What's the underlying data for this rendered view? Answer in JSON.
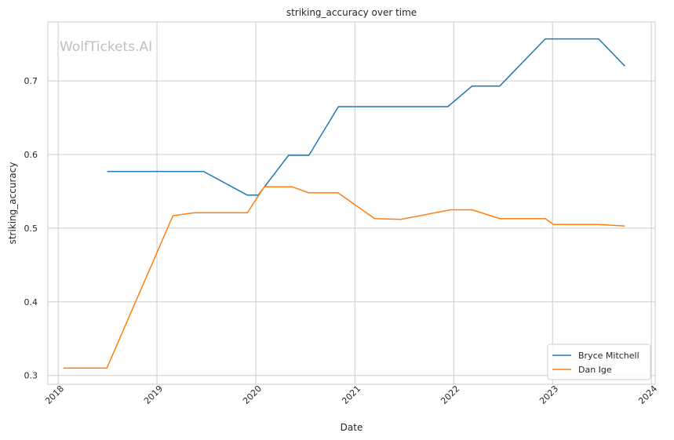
{
  "chart_data": {
    "type": "line",
    "title": "striking_accuracy over time",
    "xlabel": "Date",
    "ylabel": "striking_accuracy",
    "watermark": "WolfTickets.AI",
    "x_ticks": [
      "2018",
      "2019",
      "2020",
      "2021",
      "2022",
      "2023",
      "2024"
    ],
    "y_ticks": [
      "0.3",
      "0.4",
      "0.5",
      "0.6",
      "0.7"
    ],
    "xlim": [
      "2017-11-24",
      "2024-01-15"
    ],
    "ylim": [
      0.288,
      0.78
    ],
    "grid": true,
    "legend_position": "lower-right",
    "series": [
      {
        "name": "Bryce Mitchell",
        "color": "#1f77b4",
        "points": [
          [
            "2018-07-01",
            0.577
          ],
          [
            "2019-06-22",
            0.577
          ],
          [
            "2019-11-30",
            0.545
          ],
          [
            "2020-01-10",
            0.545
          ],
          [
            "2020-05-01",
            0.599
          ],
          [
            "2020-07-15",
            0.599
          ],
          [
            "2020-11-01",
            0.665
          ],
          [
            "2021-12-10",
            0.665
          ],
          [
            "2022-03-10",
            0.693
          ],
          [
            "2022-06-20",
            0.693
          ],
          [
            "2022-12-05",
            0.757
          ],
          [
            "2023-06-20",
            0.757
          ],
          [
            "2023-09-25",
            0.72
          ]
        ]
      },
      {
        "name": "Dan Ige",
        "color": "#ff7f0e",
        "points": [
          [
            "2018-01-20",
            0.31
          ],
          [
            "2018-06-30",
            0.31
          ],
          [
            "2019-03-01",
            0.517
          ],
          [
            "2019-05-20",
            0.521
          ],
          [
            "2019-12-01",
            0.521
          ],
          [
            "2020-02-01",
            0.556
          ],
          [
            "2020-05-15",
            0.556
          ],
          [
            "2020-07-15",
            0.548
          ],
          [
            "2020-10-31",
            0.548
          ],
          [
            "2021-03-15",
            0.513
          ],
          [
            "2021-06-20",
            0.512
          ],
          [
            "2021-12-20",
            0.525
          ],
          [
            "2022-03-10",
            0.525
          ],
          [
            "2022-06-20",
            0.513
          ],
          [
            "2022-12-05",
            0.513
          ],
          [
            "2023-01-05",
            0.505
          ],
          [
            "2023-06-20",
            0.505
          ],
          [
            "2023-09-25",
            0.503
          ]
        ]
      }
    ]
  }
}
